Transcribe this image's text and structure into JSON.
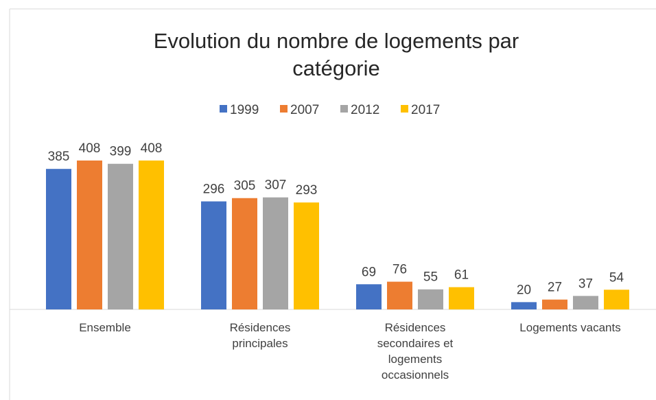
{
  "chart_data": {
    "type": "bar",
    "title": "Evolution du nombre de logements par catégorie",
    "categories": [
      "Ensemble",
      "Résidences principales",
      "Résidences secondaires et logements occasionnels",
      "Logements vacants"
    ],
    "series": [
      {
        "name": "1999",
        "color": "#4472c4",
        "values": [
          385,
          296,
          69,
          20
        ]
      },
      {
        "name": "2007",
        "color": "#ed7d31",
        "values": [
          408,
          305,
          76,
          27
        ]
      },
      {
        "name": "2012",
        "color": "#a5a5a5",
        "values": [
          399,
          307,
          55,
          37
        ]
      },
      {
        "name": "2017",
        "color": "#ffc000",
        "values": [
          408,
          293,
          61,
          54
        ]
      }
    ],
    "legend": "top"
  }
}
